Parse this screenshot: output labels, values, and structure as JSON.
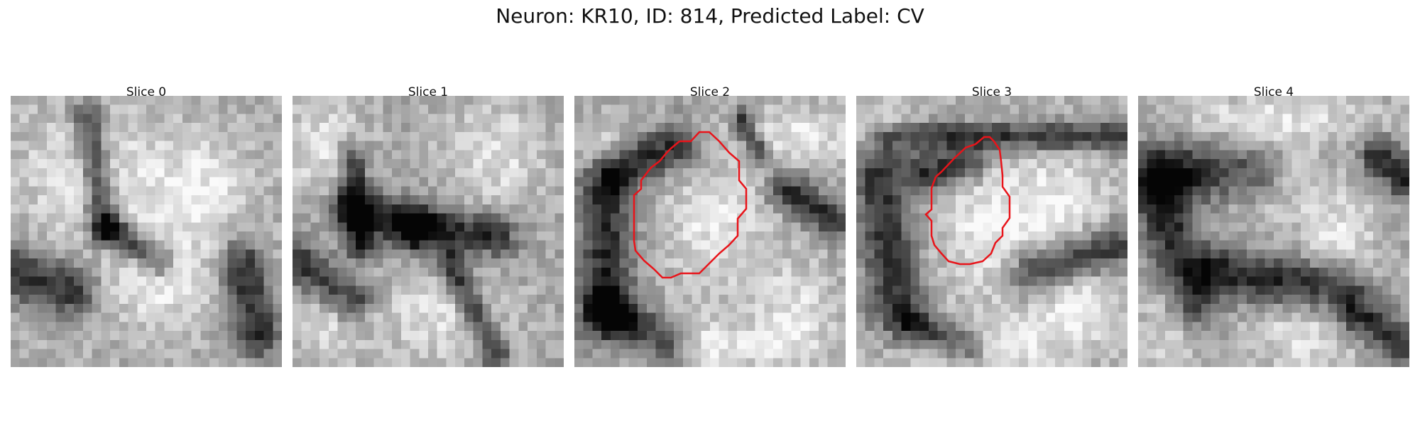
{
  "figure": {
    "title": "Neuron: KR10, ID: 814, Predicted Label: CV"
  },
  "slices": [
    {
      "title": "Slice 0",
      "has_contour": false
    },
    {
      "title": "Slice 1",
      "has_contour": false
    },
    {
      "title": "Slice 2",
      "has_contour": true
    },
    {
      "title": "Slice 3",
      "has_contour": true
    },
    {
      "title": "Slice 4",
      "has_contour": false
    }
  ],
  "colors": {
    "contour": "#e8141a"
  }
}
